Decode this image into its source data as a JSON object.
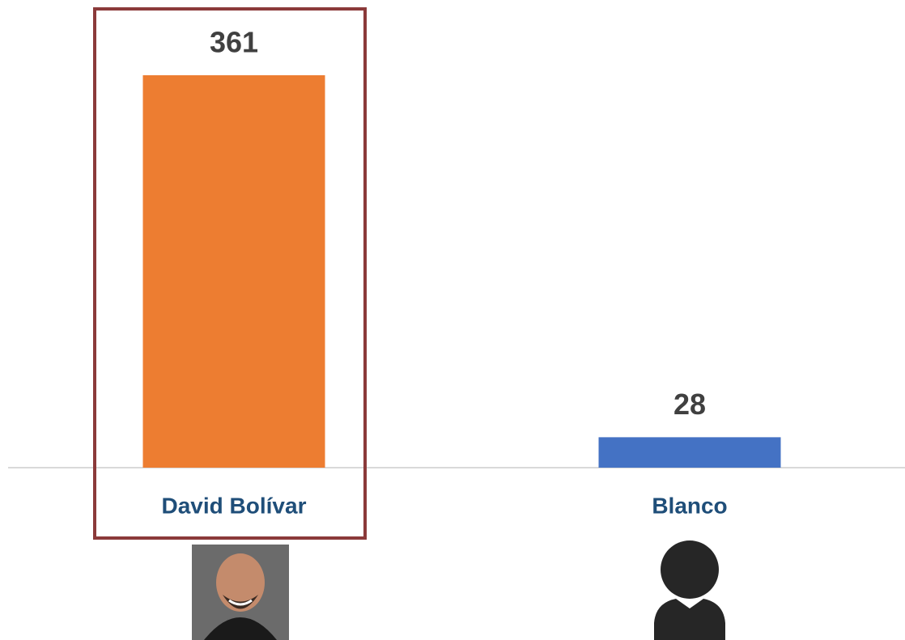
{
  "chart_data": {
    "type": "bar",
    "categories": [
      "David Bolívar",
      "Blanco"
    ],
    "values": [
      361,
      28
    ],
    "colors": [
      "#ed7d31",
      "#4472c4"
    ],
    "highlight": 0
  }
}
